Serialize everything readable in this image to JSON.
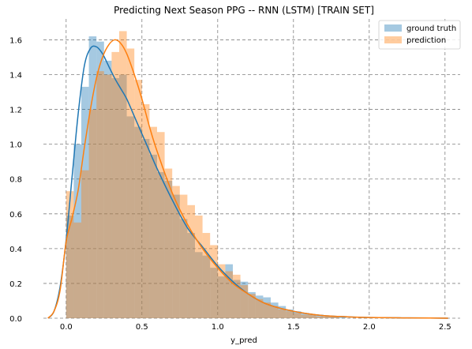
{
  "chart_data": {
    "type": "histogram",
    "title": "Predicting Next Season PPG -- RNN (LSTM) [TRAIN SET]",
    "xlabel": "y_pred",
    "ylabel": "",
    "xlim": [
      -0.15,
      2.6
    ],
    "ylim": [
      0.0,
      1.72
    ],
    "xticks": [
      "0.0",
      "0.5",
      "1.0",
      "1.5",
      "2.0",
      "2.5"
    ],
    "yticks": [
      "0.0",
      "0.2",
      "0.4",
      "0.6",
      "0.8",
      "1.0",
      "1.2",
      "1.4",
      "1.6"
    ],
    "grid": true,
    "legend_position": "top-right",
    "colors": {
      "ground_truth": "#1f77b4",
      "prediction": "#ff7f0e",
      "overlap": "#c8ad8c"
    },
    "bin_width": 0.05,
    "series": [
      {
        "name": "ground truth",
        "hist_x0": 0.0,
        "hist_values": [
          0.59,
          1.0,
          1.33,
          1.62,
          1.59,
          1.48,
          1.38,
          1.4,
          1.16,
          1.1,
          1.03,
          0.94,
          0.84,
          0.79,
          0.71,
          0.57,
          0.49,
          0.38,
          0.36,
          0.29,
          0.24,
          0.31,
          0.22,
          0.21,
          0.15,
          0.13,
          0.12,
          0.09,
          0.07,
          0.05,
          0.04,
          0.03,
          0.02,
          0.02,
          0.01,
          0.01,
          0.01,
          0.0,
          0.0,
          0.0,
          0.0,
          0.0,
          0.0,
          0.0,
          0.0,
          0.0,
          0.0,
          0.0,
          0.0,
          0.0
        ],
        "kde_x": [
          -0.12,
          -0.08,
          -0.04,
          0.0,
          0.04,
          0.08,
          0.12,
          0.16,
          0.2,
          0.24,
          0.28,
          0.32,
          0.36,
          0.4,
          0.45,
          0.5,
          0.55,
          0.6,
          0.7,
          0.8,
          0.9,
          1.0,
          1.1,
          1.2,
          1.3,
          1.4,
          1.5,
          1.6,
          1.7,
          1.8,
          1.9,
          2.0,
          2.2,
          2.4,
          2.52
        ],
        "kde_y": [
          0.0,
          0.04,
          0.18,
          0.45,
          0.82,
          1.18,
          1.45,
          1.55,
          1.56,
          1.52,
          1.45,
          1.38,
          1.32,
          1.26,
          1.16,
          1.06,
          0.96,
          0.86,
          0.68,
          0.52,
          0.41,
          0.3,
          0.21,
          0.14,
          0.09,
          0.06,
          0.04,
          0.025,
          0.015,
          0.01,
          0.006,
          0.004,
          0.002,
          0.001,
          0.0
        ]
      },
      {
        "name": "prediction",
        "hist_x0": 0.0,
        "hist_values": [
          0.73,
          0.55,
          0.85,
          1.2,
          1.42,
          1.4,
          1.53,
          1.65,
          1.55,
          1.37,
          1.23,
          1.1,
          1.07,
          0.86,
          0.76,
          0.71,
          0.65,
          0.59,
          0.49,
          0.42,
          0.31,
          0.27,
          0.25,
          0.19,
          0.14,
          0.11,
          0.09,
          0.07,
          0.05,
          0.04,
          0.03,
          0.02,
          0.02,
          0.01,
          0.01,
          0.01,
          0.0,
          0.0,
          0.0,
          0.0,
          0.0,
          0.0,
          0.0,
          0.0,
          0.0,
          0.0,
          0.0,
          0.0,
          0.0,
          0.0
        ],
        "kde_x": [
          -0.12,
          -0.08,
          -0.04,
          0.0,
          0.04,
          0.08,
          0.12,
          0.16,
          0.2,
          0.24,
          0.28,
          0.32,
          0.36,
          0.4,
          0.45,
          0.5,
          0.55,
          0.6,
          0.7,
          0.8,
          0.9,
          1.0,
          1.1,
          1.2,
          1.3,
          1.4,
          1.5,
          1.6,
          1.7,
          1.8,
          1.9,
          2.0,
          2.2,
          2.4,
          2.52
        ],
        "kde_y": [
          0.0,
          0.04,
          0.16,
          0.44,
          0.58,
          0.74,
          0.98,
          1.2,
          1.38,
          1.5,
          1.57,
          1.6,
          1.58,
          1.52,
          1.4,
          1.26,
          1.1,
          0.96,
          0.72,
          0.54,
          0.4,
          0.29,
          0.2,
          0.14,
          0.09,
          0.06,
          0.04,
          0.025,
          0.015,
          0.01,
          0.006,
          0.004,
          0.002,
          0.001,
          0.0
        ]
      }
    ]
  }
}
